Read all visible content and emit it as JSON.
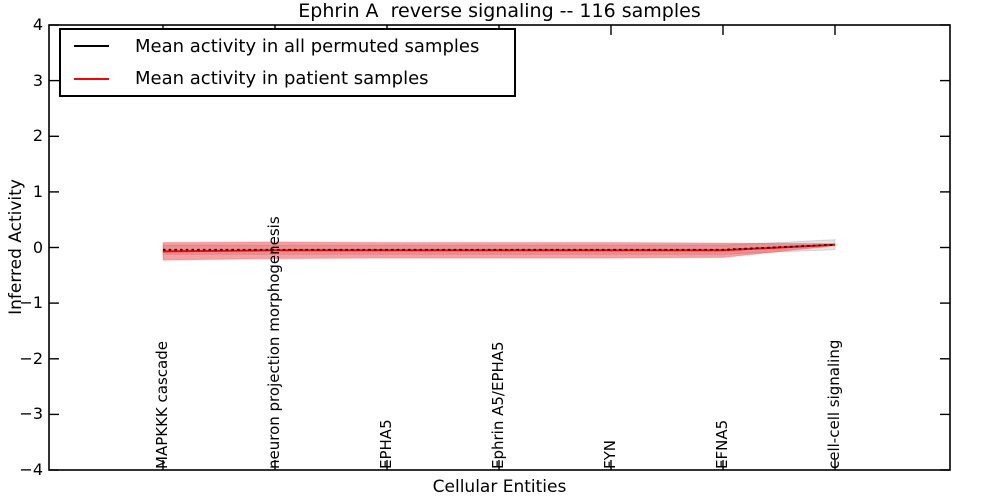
{
  "title": "Ephrin A  reverse signaling -- 116 samples",
  "axes": {
    "xlabel": "Cellular Entities",
    "ylabel": "Inferred Activity",
    "yticks": [
      4,
      3,
      2,
      1,
      0,
      -1,
      -2,
      -3,
      -4
    ],
    "ylim": [
      -4,
      4
    ]
  },
  "legend": {
    "items": [
      {
        "label": "Mean activity in all permuted samples",
        "color": "#000000"
      },
      {
        "label": "Mean activity in patient samples",
        "color": "#ff0000"
      }
    ]
  },
  "chart_data": {
    "type": "line",
    "title": "Ephrin A  reverse signaling -- 116 samples",
    "xlabel": "Cellular Entities",
    "ylabel": "Inferred Activity",
    "ylim": [
      -4,
      4
    ],
    "grid": false,
    "legend_position": "upper left",
    "categories": [
      "MAPKKK cascade",
      "neuron projection morphogenesis",
      "EPHA5",
      "Ephrin A5/EPHA5",
      "FYN",
      "EFNA5",
      "cell-cell signaling"
    ],
    "series": [
      {
        "name": "Mean activity in all permuted samples",
        "color": "#000000",
        "line_style": "dotted",
        "values": [
          -0.04,
          -0.04,
          -0.04,
          -0.04,
          -0.04,
          -0.04,
          0.05
        ]
      },
      {
        "name": "Mean activity in patient samples",
        "color": "#ff0000",
        "line_style": "solid",
        "values": [
          -0.07,
          -0.05,
          -0.05,
          -0.05,
          -0.05,
          -0.05,
          0.05
        ]
      }
    ],
    "bands": [
      {
        "name": "permuted samples std band",
        "fill": "rgba(0,0,0,0.10)",
        "stroke": "rgba(0,0,0,0.13)",
        "upper": [
          0.04,
          0.04,
          0.04,
          0.04,
          0.04,
          0.04,
          0.14
        ],
        "lower": [
          -0.12,
          -0.12,
          -0.12,
          -0.12,
          -0.12,
          -0.12,
          -0.04
        ]
      },
      {
        "name": "patient samples std band",
        "fill": "rgba(237,28,36,0.42)",
        "stroke": "rgba(237,28,36,0.20)",
        "upper": [
          0.09,
          0.1,
          0.09,
          0.09,
          0.09,
          0.08,
          0.07
        ],
        "lower": [
          -0.23,
          -0.2,
          -0.19,
          -0.19,
          -0.19,
          -0.18,
          0.03
        ]
      }
    ]
  }
}
